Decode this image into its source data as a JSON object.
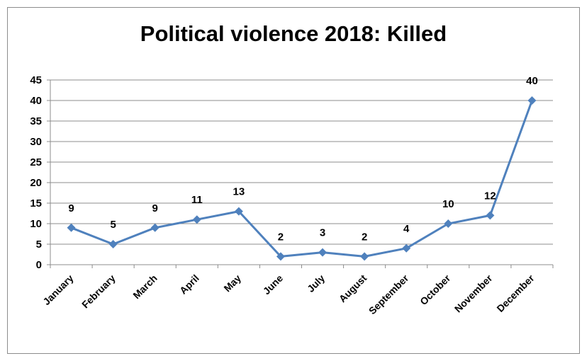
{
  "chart_data": {
    "type": "line",
    "title": "Political violence 2018: Killed",
    "xlabel": "",
    "ylabel": "",
    "categories": [
      "January",
      "February",
      "March",
      "April",
      "May",
      "June",
      "July",
      "August",
      "September",
      "October",
      "November",
      "December"
    ],
    "series": [
      {
        "values": [
          9,
          5,
          9,
          11,
          13,
          2,
          3,
          2,
          4,
          10,
          12,
          40
        ]
      }
    ],
    "data_labels": [
      "9",
      "5",
      "9",
      "11",
      "13",
      "2",
      "3",
      "2",
      "4",
      "10",
      "12",
      "40"
    ],
    "y_ticks": [
      "0",
      "5",
      "10",
      "15",
      "20",
      "25",
      "30",
      "35",
      "40",
      "45"
    ],
    "ylim": [
      0,
      45
    ],
    "grid": "horizontal",
    "legend": "none",
    "colors": {
      "series": "#4f81bd",
      "grid": "#8c8c8c",
      "axis": "#8c8c8c"
    },
    "marker": "diamond"
  }
}
